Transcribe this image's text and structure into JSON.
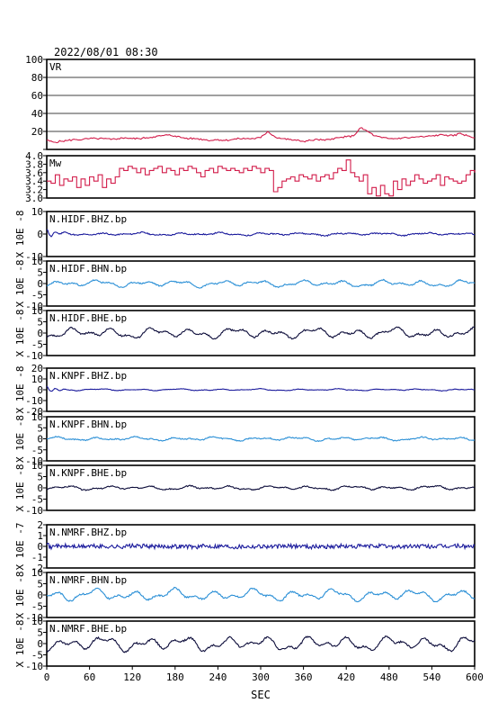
{
  "header": {
    "timestamp": "2022/08/01 08:30"
  },
  "colors": {
    "frame": "#000000",
    "vr": "#d21c4a",
    "mw": "#d21c4a",
    "bhz": "#1a1a9c",
    "bhn": "#2a8fd6",
    "bhe": "#0c0c3a"
  },
  "chart_data": {
    "type": "line",
    "xlabel": "SEC",
    "xlim": [
      0,
      600
    ],
    "xticks": [
      0,
      60,
      120,
      180,
      240,
      300,
      360,
      420,
      480,
      540,
      600
    ],
    "panels": [
      {
        "id": "vr",
        "label": "VR",
        "unit": "",
        "kind": "vr",
        "color_key": "vr",
        "ylim": [
          0,
          100
        ],
        "yticks": [
          0,
          20,
          40,
          60,
          80,
          100
        ],
        "ytick_labels": [
          "",
          "20",
          "40",
          "60",
          "80",
          "100"
        ],
        "grid": true,
        "series": {
          "step": 10,
          "values": [
            10,
            8,
            9,
            10,
            11,
            11,
            12,
            12,
            12,
            11,
            12,
            13,
            12,
            12,
            13,
            14,
            15,
            16,
            15,
            13,
            12,
            12,
            11,
            10,
            11,
            10,
            11,
            12,
            12,
            12,
            13,
            20,
            14,
            12,
            11,
            10,
            9,
            10,
            11,
            10,
            12,
            13,
            14,
            15,
            24,
            20,
            15,
            13,
            12,
            12,
            13,
            13,
            14,
            14,
            15,
            16,
            16,
            15,
            18,
            15,
            13
          ]
        }
      },
      {
        "id": "mw",
        "label": "Mw",
        "unit": "",
        "kind": "mw",
        "color_key": "mw",
        "ylim": [
          3.0,
          4.0
        ],
        "yticks": [
          3.0,
          3.2,
          3.4,
          3.6,
          3.8,
          4.0
        ],
        "ytick_labels": [
          "3.0",
          "3.2",
          "3.4",
          "3.6",
          "3.8",
          "4.0"
        ],
        "series": {
          "step": 6,
          "values": [
            3.4,
            3.35,
            3.55,
            3.3,
            3.45,
            3.4,
            3.5,
            3.25,
            3.45,
            3.3,
            3.5,
            3.4,
            3.55,
            3.25,
            3.45,
            3.35,
            3.5,
            3.7,
            3.65,
            3.75,
            3.7,
            3.6,
            3.7,
            3.55,
            3.65,
            3.7,
            3.75,
            3.6,
            3.7,
            3.65,
            3.55,
            3.7,
            3.65,
            3.75,
            3.7,
            3.6,
            3.5,
            3.65,
            3.7,
            3.6,
            3.75,
            3.7,
            3.65,
            3.7,
            3.65,
            3.6,
            3.7,
            3.65,
            3.75,
            3.7,
            3.6,
            3.7,
            3.65,
            3.15,
            3.25,
            3.4,
            3.45,
            3.5,
            3.4,
            3.55,
            3.5,
            3.45,
            3.55,
            3.4,
            3.5,
            3.55,
            3.45,
            3.6,
            3.7,
            3.65,
            3.9,
            3.6,
            3.5,
            3.4,
            3.55,
            3.1,
            3.25,
            3.05,
            3.3,
            3.1,
            3.05,
            3.4,
            3.2,
            3.45,
            3.3,
            3.4,
            3.55,
            3.45,
            3.35,
            3.4,
            3.45,
            3.55,
            3.3,
            3.5,
            3.45,
            3.4,
            3.35,
            3.4,
            3.55,
            3.65,
            3.6
          ]
        }
      },
      {
        "id": "hidf-bhz",
        "label": "N.HIDF.BHZ.bp",
        "unit": "X 10E -8",
        "kind": "wave",
        "color_key": "bhz",
        "ylim": [
          -10,
          10
        ],
        "yticks": [
          -10,
          0,
          10
        ],
        "ytick_labels": [
          "-10",
          "0",
          "10"
        ],
        "series": {
          "amplitude": 0.6,
          "seed": 11,
          "wiggle": 0.5,
          "onset": 2.0,
          "onset_decay": 0.08
        }
      },
      {
        "id": "hidf-bhn",
        "label": "N.HIDF.BHN.bp",
        "unit": "X 10E -8",
        "kind": "wave",
        "color_key": "bhn",
        "ylim": [
          -10,
          10
        ],
        "yticks": [
          -10,
          -5,
          0,
          5,
          10
        ],
        "ytick_labels": [
          "-10",
          "-5",
          "0",
          "5",
          "10"
        ],
        "series": {
          "amplitude": 1.4,
          "seed": 23,
          "wiggle": 0.6,
          "onset": 0.0,
          "onset_decay": 0.1
        }
      },
      {
        "id": "hidf-bhe",
        "label": "N.HIDF.BHE.bp",
        "unit": "X 10E -8",
        "kind": "wave",
        "color_key": "bhe",
        "ylim": [
          -10,
          10
        ],
        "yticks": [
          -10,
          -5,
          0,
          5,
          10
        ],
        "ytick_labels": [
          "-10",
          "-5",
          "0",
          "5",
          "10"
        ],
        "series": {
          "amplitude": 2.2,
          "seed": 37,
          "wiggle": 0.7,
          "onset": 0.0,
          "onset_decay": 0.1
        }
      },
      {
        "id": "knpf-bhz",
        "label": "N.KNPF.BHZ.bp",
        "unit": "X 10E -8",
        "kind": "wave",
        "color_key": "bhz",
        "ylim": [
          -20,
          20
        ],
        "yticks": [
          -20,
          -10,
          0,
          10,
          20
        ],
        "ytick_labels": [
          "-20",
          "-10",
          "0",
          "10",
          "20"
        ],
        "series": {
          "amplitude": 0.8,
          "seed": 41,
          "wiggle": 0.5,
          "onset": 3.0,
          "onset_decay": 0.08
        }
      },
      {
        "id": "knpf-bhn",
        "label": "N.KNPF.BHN.bp",
        "unit": "X 10E -8",
        "kind": "wave",
        "color_key": "bhn",
        "ylim": [
          -10,
          10
        ],
        "yticks": [
          -10,
          -5,
          0,
          5,
          10
        ],
        "ytick_labels": [
          "-10",
          "-5",
          "0",
          "5",
          "10"
        ],
        "series": {
          "amplitude": 0.8,
          "seed": 53,
          "wiggle": 0.5,
          "onset": 0.0,
          "onset_decay": 0.1
        }
      },
      {
        "id": "knpf-bhe",
        "label": "N.KNPF.BHE.bp",
        "unit": "X 10E -8",
        "kind": "wave",
        "color_key": "bhe",
        "ylim": [
          -10,
          10
        ],
        "yticks": [
          -10,
          -5,
          0,
          5,
          10
        ],
        "ytick_labels": [
          "-10",
          "-5",
          "0",
          "5",
          "10"
        ],
        "series": {
          "amplitude": 0.9,
          "seed": 67,
          "wiggle": 0.5,
          "onset": 0.0,
          "onset_decay": 0.1
        }
      },
      {
        "id": "nmrf-bhz",
        "label": "N.NMRF.BHZ.bp",
        "unit": "X 10E -7",
        "kind": "wave",
        "color_key": "bhz",
        "ylim": [
          -2,
          2
        ],
        "yticks": [
          -2,
          -1,
          0,
          1,
          2
        ],
        "ytick_labels": [
          "-2",
          "-1",
          "0",
          "1",
          "2"
        ],
        "series": {
          "amplitude": 0.04,
          "seed": 71,
          "wiggle": 0.4,
          "onset": 0.35,
          "onset_decay": 0.1
        }
      },
      {
        "id": "nmrf-bhn",
        "label": "N.NMRF.BHN.bp",
        "unit": "X 10E -8",
        "kind": "wave",
        "color_key": "bhn",
        "ylim": [
          -10,
          10
        ],
        "yticks": [
          -10,
          -5,
          0,
          5,
          10
        ],
        "ytick_labels": [
          "-10",
          "-5",
          "0",
          "5",
          "10"
        ],
        "series": {
          "amplitude": 2.4,
          "seed": 83,
          "wiggle": 0.7,
          "onset": 0.0,
          "onset_decay": 0.1
        }
      },
      {
        "id": "nmrf-bhe",
        "label": "N.NMRF.BHE.bp",
        "unit": "X 10E -8",
        "kind": "wave",
        "color_key": "bhe",
        "ylim": [
          -10,
          10
        ],
        "yticks": [
          -10,
          -5,
          0,
          5,
          10
        ],
        "ytick_labels": [
          "-10",
          "-5",
          "0",
          "5",
          "10"
        ],
        "series": {
          "amplitude": 3.0,
          "seed": 97,
          "wiggle": 0.8,
          "onset": 0.0,
          "onset_decay": 0.1
        }
      }
    ]
  }
}
